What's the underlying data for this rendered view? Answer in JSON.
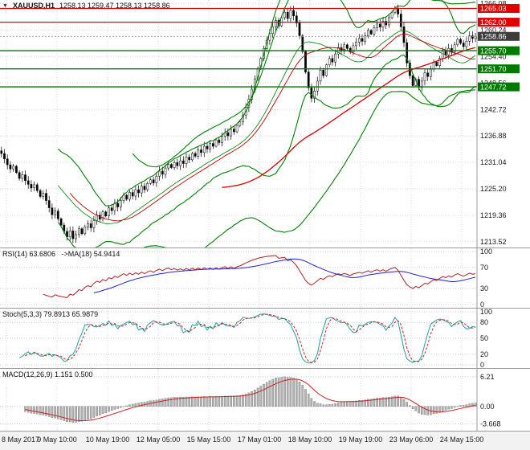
{
  "window": {
    "symbol": "XAUUSD,H1",
    "ohlc_text": "1258.13 1259.47 1258.13 1258.86"
  },
  "colors": {
    "up_candle": "#ffffff",
    "down_candle": "#000000",
    "candle_outline": "#000000",
    "bollinger": "#008000",
    "ma_slow": "#d40000",
    "ma_fast": "#c00000",
    "resistance": "#e00000",
    "support": "#007a00",
    "current_badge": "#3c3c3c",
    "rsi_main": "#b22222",
    "rsi_signal": "#2222cc",
    "stoch_main": "#20a0a0",
    "stoch_signal": "#cc2222",
    "macd_hist_fill": "#b4b4b4",
    "macd_hist_stroke": "#787878",
    "macd_signal": "#cc2222",
    "grid": "#d9d9d9",
    "axis_border": "#9a9a9a"
  },
  "chart_data": {
    "type": "candlestick",
    "title": "XAUUSD,H1",
    "timeframe": "H1",
    "ylim": [
      1212.6,
      1266.9
    ],
    "y_ticks": [
      1266.08,
      1260.24,
      1254.4,
      1248.56,
      1242.72,
      1236.88,
      1231.04,
      1225.2,
      1219.36,
      1213.52
    ],
    "x_labels": [
      "8 May 2017",
      "9 May 10:00",
      "10 May 19:00",
      "12 May 05:00",
      "15 May 15:00",
      "17 May 01:00",
      "18 May 10:00",
      "19 May 19:00",
      "23 May 06:00",
      "24 May 15:00"
    ],
    "levels": {
      "resistance": [
        1265.03,
        1262.0
      ],
      "support": [
        1255.7,
        1251.7,
        1247.72
      ],
      "current_price": 1258.86
    },
    "closes": [
      1233.0,
      1231.8,
      1230.5,
      1229.6,
      1230.2,
      1228.8,
      1227.5,
      1228.3,
      1227.0,
      1226.2,
      1225.4,
      1226.1,
      1224.8,
      1223.5,
      1224.2,
      1222.6,
      1221.0,
      1219.5,
      1220.3,
      1218.6,
      1217.2,
      1215.8,
      1214.6,
      1215.9,
      1214.2,
      1215.1,
      1216.4,
      1215.3,
      1216.8,
      1217.5,
      1216.6,
      1218.2,
      1219.4,
      1218.5,
      1220.1,
      1219.2,
      1221.0,
      1220.4,
      1222.0,
      1221.2,
      1222.6,
      1223.8,
      1222.9,
      1224.4,
      1223.6,
      1225.0,
      1224.3,
      1225.8,
      1225.0,
      1226.4,
      1227.2,
      1226.5,
      1228.0,
      1229.1,
      1228.4,
      1229.8,
      1230.6,
      1229.9,
      1231.0,
      1230.3,
      1231.4,
      1230.8,
      1232.2,
      1231.6,
      1233.0,
      1232.4,
      1233.8,
      1233.2,
      1234.6,
      1234.0,
      1235.2,
      1234.6,
      1236.0,
      1235.4,
      1236.8,
      1237.6,
      1236.9,
      1238.4,
      1237.8,
      1239.2,
      1240.0,
      1241.5,
      1243.2,
      1245.0,
      1247.2,
      1249.5,
      1251.8,
      1254.0,
      1256.2,
      1258.0,
      1259.5,
      1261.0,
      1262.4,
      1261.2,
      1263.0,
      1264.2,
      1262.8,
      1264.6,
      1263.4,
      1261.8,
      1259.0,
      1255.5,
      1251.0,
      1247.5,
      1245.2,
      1246.8,
      1249.0,
      1251.4,
      1250.2,
      1252.6,
      1254.0,
      1253.2,
      1255.0,
      1256.4,
      1255.6,
      1257.0,
      1256.2,
      1255.4,
      1256.8,
      1257.6,
      1258.4,
      1257.8,
      1259.0,
      1260.2,
      1259.4,
      1260.8,
      1261.6,
      1260.9,
      1262.2,
      1261.4,
      1263.0,
      1264.2,
      1265.1,
      1263.8,
      1261.0,
      1257.5,
      1253.0,
      1250.2,
      1248.0,
      1249.4,
      1247.6,
      1249.0,
      1250.8,
      1250.0,
      1251.6,
      1253.2,
      1252.4,
      1254.0,
      1255.6,
      1254.8,
      1256.2,
      1255.4,
      1257.0,
      1258.2,
      1257.4,
      1256.6,
      1257.8,
      1259.0,
      1258.4,
      1258.86
    ],
    "indicators": {
      "rsi": {
        "label": "RSI(14) 63.6806   ->MA(18) 54.9414",
        "period": 14,
        "ma_period": 18,
        "last": 63.6806,
        "ma_last": 54.9414,
        "range": [
          0,
          100
        ],
        "ticks": [
          {
            "v": 100,
            "label": "100"
          },
          {
            "v": 70,
            "label": "70"
          },
          {
            "v": 30,
            "label": "30"
          },
          {
            "v": 0,
            "label": "0"
          }
        ]
      },
      "stoch": {
        "label": "Stoch(5,3,3) 79.8913 65.9879",
        "k": 5,
        "d": 3,
        "slowing": 3,
        "last": 79.8913,
        "signal_last": 65.9879,
        "range": [
          0,
          100
        ],
        "ticks": [
          {
            "v": 100,
            "label": "100"
          },
          {
            "v": 80,
            "label": "80"
          },
          {
            "v": 50,
            "label": "50"
          },
          {
            "v": 20,
            "label": "20"
          },
          {
            "v": 0,
            "label": "0"
          }
        ]
      },
      "macd": {
        "label": "MACD(12,26,9) 1.151 0.500",
        "fast": 12,
        "slow": 26,
        "signal": 9,
        "last": 1.151,
        "signal_last": 0.5,
        "range": [
          -4.4,
          7.2
        ],
        "ticks": [
          {
            "v": 6.21,
            "label": "6.21"
          },
          {
            "v": 0,
            "label": "0.00"
          },
          {
            "v": -3.668,
            "label": "-3.668"
          }
        ]
      }
    }
  }
}
